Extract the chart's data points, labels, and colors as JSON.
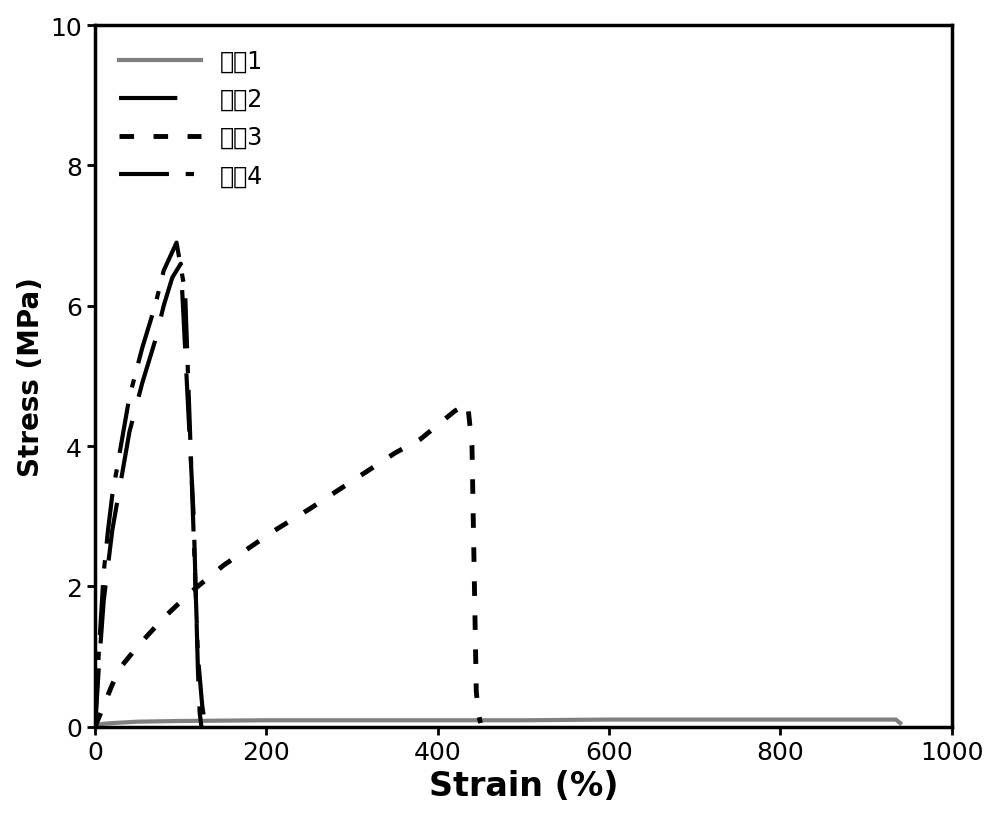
{
  "title": "",
  "xlabel": "Strain (%)",
  "ylabel": "Stress (MPa)",
  "xlim": [
    0,
    1000
  ],
  "ylim": [
    0,
    10
  ],
  "xticks": [
    0,
    200,
    400,
    600,
    800,
    1000
  ],
  "yticks": [
    0,
    2,
    4,
    6,
    8,
    10
  ],
  "legend_labels": [
    "样品1",
    "样品2",
    "样品3",
    "样品4"
  ],
  "series": {
    "sample1": {
      "x": [
        0,
        1,
        2,
        5,
        10,
        20,
        50,
        100,
        200,
        300,
        400,
        500,
        600,
        700,
        800,
        900,
        935,
        940
      ],
      "y": [
        0,
        0.01,
        0.02,
        0.03,
        0.04,
        0.05,
        0.07,
        0.08,
        0.09,
        0.09,
        0.09,
        0.09,
        0.1,
        0.1,
        0.1,
        0.1,
        0.1,
        0.05
      ],
      "color": "#808080",
      "linestyle": "solid",
      "linewidth": 3.0
    },
    "sample2": {
      "x": [
        0,
        2,
        4,
        7,
        10,
        15,
        20,
        30,
        40,
        55,
        70,
        80,
        90,
        100,
        115,
        120,
        122,
        124
      ],
      "y": [
        0,
        0.4,
        0.8,
        1.3,
        1.8,
        2.3,
        2.8,
        3.5,
        4.2,
        4.9,
        5.5,
        6.0,
        6.4,
        6.6,
        3.0,
        0.8,
        0.2,
        0.0
      ],
      "color": "#000000",
      "linestyle": "dashed",
      "linewidth": 3.0
    },
    "sample3": {
      "x": [
        0,
        5,
        10,
        15,
        20,
        30,
        50,
        80,
        110,
        130,
        150,
        180,
        210,
        250,
        300,
        350,
        380,
        400,
        420,
        435,
        440,
        445,
        448,
        450
      ],
      "y": [
        0,
        0.15,
        0.3,
        0.45,
        0.6,
        0.85,
        1.15,
        1.55,
        1.9,
        2.1,
        2.3,
        2.55,
        2.8,
        3.1,
        3.5,
        3.9,
        4.1,
        4.3,
        4.5,
        4.6,
        4.0,
        0.5,
        0.15,
        0.05
      ],
      "color": "#000000",
      "linestyle": "dotted",
      "linewidth": 3.5
    },
    "sample4": {
      "x": [
        0,
        2,
        4,
        7,
        10,
        15,
        20,
        30,
        40,
        55,
        70,
        80,
        95,
        105,
        120,
        125,
        128,
        130
      ],
      "y": [
        0,
        0.5,
        1.0,
        1.6,
        2.2,
        2.8,
        3.3,
        4.0,
        4.7,
        5.4,
        6.0,
        6.5,
        6.9,
        6.2,
        1.0,
        0.3,
        0.05,
        0.0
      ],
      "color": "#000000",
      "linestyle": "dashdot",
      "linewidth": 3.0
    }
  },
  "background_color": "#ffffff",
  "xlabel_fontsize": 24,
  "ylabel_fontsize": 20,
  "tick_fontsize": 18,
  "legend_fontsize": 17,
  "spine_linewidth": 2.5
}
